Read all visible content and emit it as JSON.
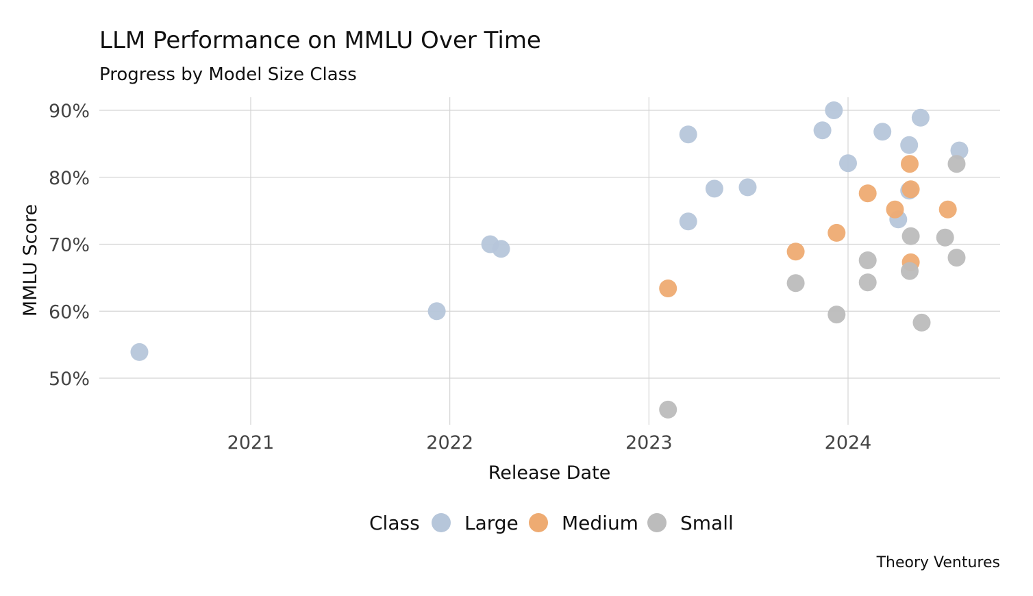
{
  "chart_data": {
    "type": "scatter",
    "title": "LLM Performance on MMLU Over Time",
    "subtitle": "Progress by Model Size Class",
    "xlabel": "Release Date",
    "ylabel": "MMLU Score",
    "caption": "Theory Ventures",
    "x_axis_type": "date",
    "xlim": [
      "2020-05-01",
      "2024-09-15"
    ],
    "ylim": [
      43,
      92
    ],
    "x_ticks": [
      {
        "value": "2021-01-01",
        "label": "2021"
      },
      {
        "value": "2022-01-01",
        "label": "2022"
      },
      {
        "value": "2023-01-01",
        "label": "2023"
      },
      {
        "value": "2024-01-01",
        "label": "2024"
      }
    ],
    "y_ticks": [
      {
        "value": 50,
        "label": "50%"
      },
      {
        "value": 60,
        "label": "60%"
      },
      {
        "value": 70,
        "label": "70%"
      },
      {
        "value": 80,
        "label": "80%"
      },
      {
        "value": 90,
        "label": "90%"
      }
    ],
    "grid": true,
    "legend": {
      "title": "Class",
      "position": "bottom"
    },
    "series": [
      {
        "name": "Large",
        "color": "#b6c6da",
        "points": [
          {
            "x": "2020-06-11",
            "y": 53.9
          },
          {
            "x": "2021-12-08",
            "y": 60.0
          },
          {
            "x": "2022-03-16",
            "y": 70.0
          },
          {
            "x": "2022-04-05",
            "y": 69.3
          },
          {
            "x": "2023-03-14",
            "y": 86.4
          },
          {
            "x": "2023-03-14",
            "y": 73.4
          },
          {
            "x": "2023-05-01",
            "y": 78.3
          },
          {
            "x": "2023-07-01",
            "y": 78.5
          },
          {
            "x": "2023-11-15",
            "y": 87.0
          },
          {
            "x": "2023-12-06",
            "y": 90.0
          },
          {
            "x": "2024-01-01",
            "y": 82.1
          },
          {
            "x": "2024-03-04",
            "y": 86.8
          },
          {
            "x": "2024-04-02",
            "y": 73.7
          },
          {
            "x": "2024-04-22",
            "y": 84.8
          },
          {
            "x": "2024-04-22",
            "y": 78.0
          },
          {
            "x": "2024-05-13",
            "y": 88.9
          },
          {
            "x": "2024-07-23",
            "y": 84.0
          }
        ]
      },
      {
        "name": "Medium",
        "color": "#eeab72",
        "points": [
          {
            "x": "2023-02-05",
            "y": 63.4
          },
          {
            "x": "2023-09-27",
            "y": 68.9
          },
          {
            "x": "2023-12-11",
            "y": 71.7
          },
          {
            "x": "2024-02-06",
            "y": 77.6
          },
          {
            "x": "2024-03-27",
            "y": 75.2
          },
          {
            "x": "2024-04-23",
            "y": 82.0
          },
          {
            "x": "2024-04-25",
            "y": 78.2
          },
          {
            "x": "2024-04-25",
            "y": 67.3
          },
          {
            "x": "2024-07-02",
            "y": 75.2
          }
        ]
      },
      {
        "name": "Small",
        "color": "#bcbcbc",
        "points": [
          {
            "x": "2023-02-05",
            "y": 45.3
          },
          {
            "x": "2023-09-27",
            "y": 64.2
          },
          {
            "x": "2023-12-11",
            "y": 59.5
          },
          {
            "x": "2024-02-06",
            "y": 67.6
          },
          {
            "x": "2024-02-06",
            "y": 64.3
          },
          {
            "x": "2024-04-23",
            "y": 66.0
          },
          {
            "x": "2024-04-25",
            "y": 71.2
          },
          {
            "x": "2024-05-15",
            "y": 58.3
          },
          {
            "x": "2024-06-27",
            "y": 71.0
          },
          {
            "x": "2024-07-18",
            "y": 82.0
          },
          {
            "x": "2024-07-18",
            "y": 68.0
          }
        ]
      }
    ]
  }
}
